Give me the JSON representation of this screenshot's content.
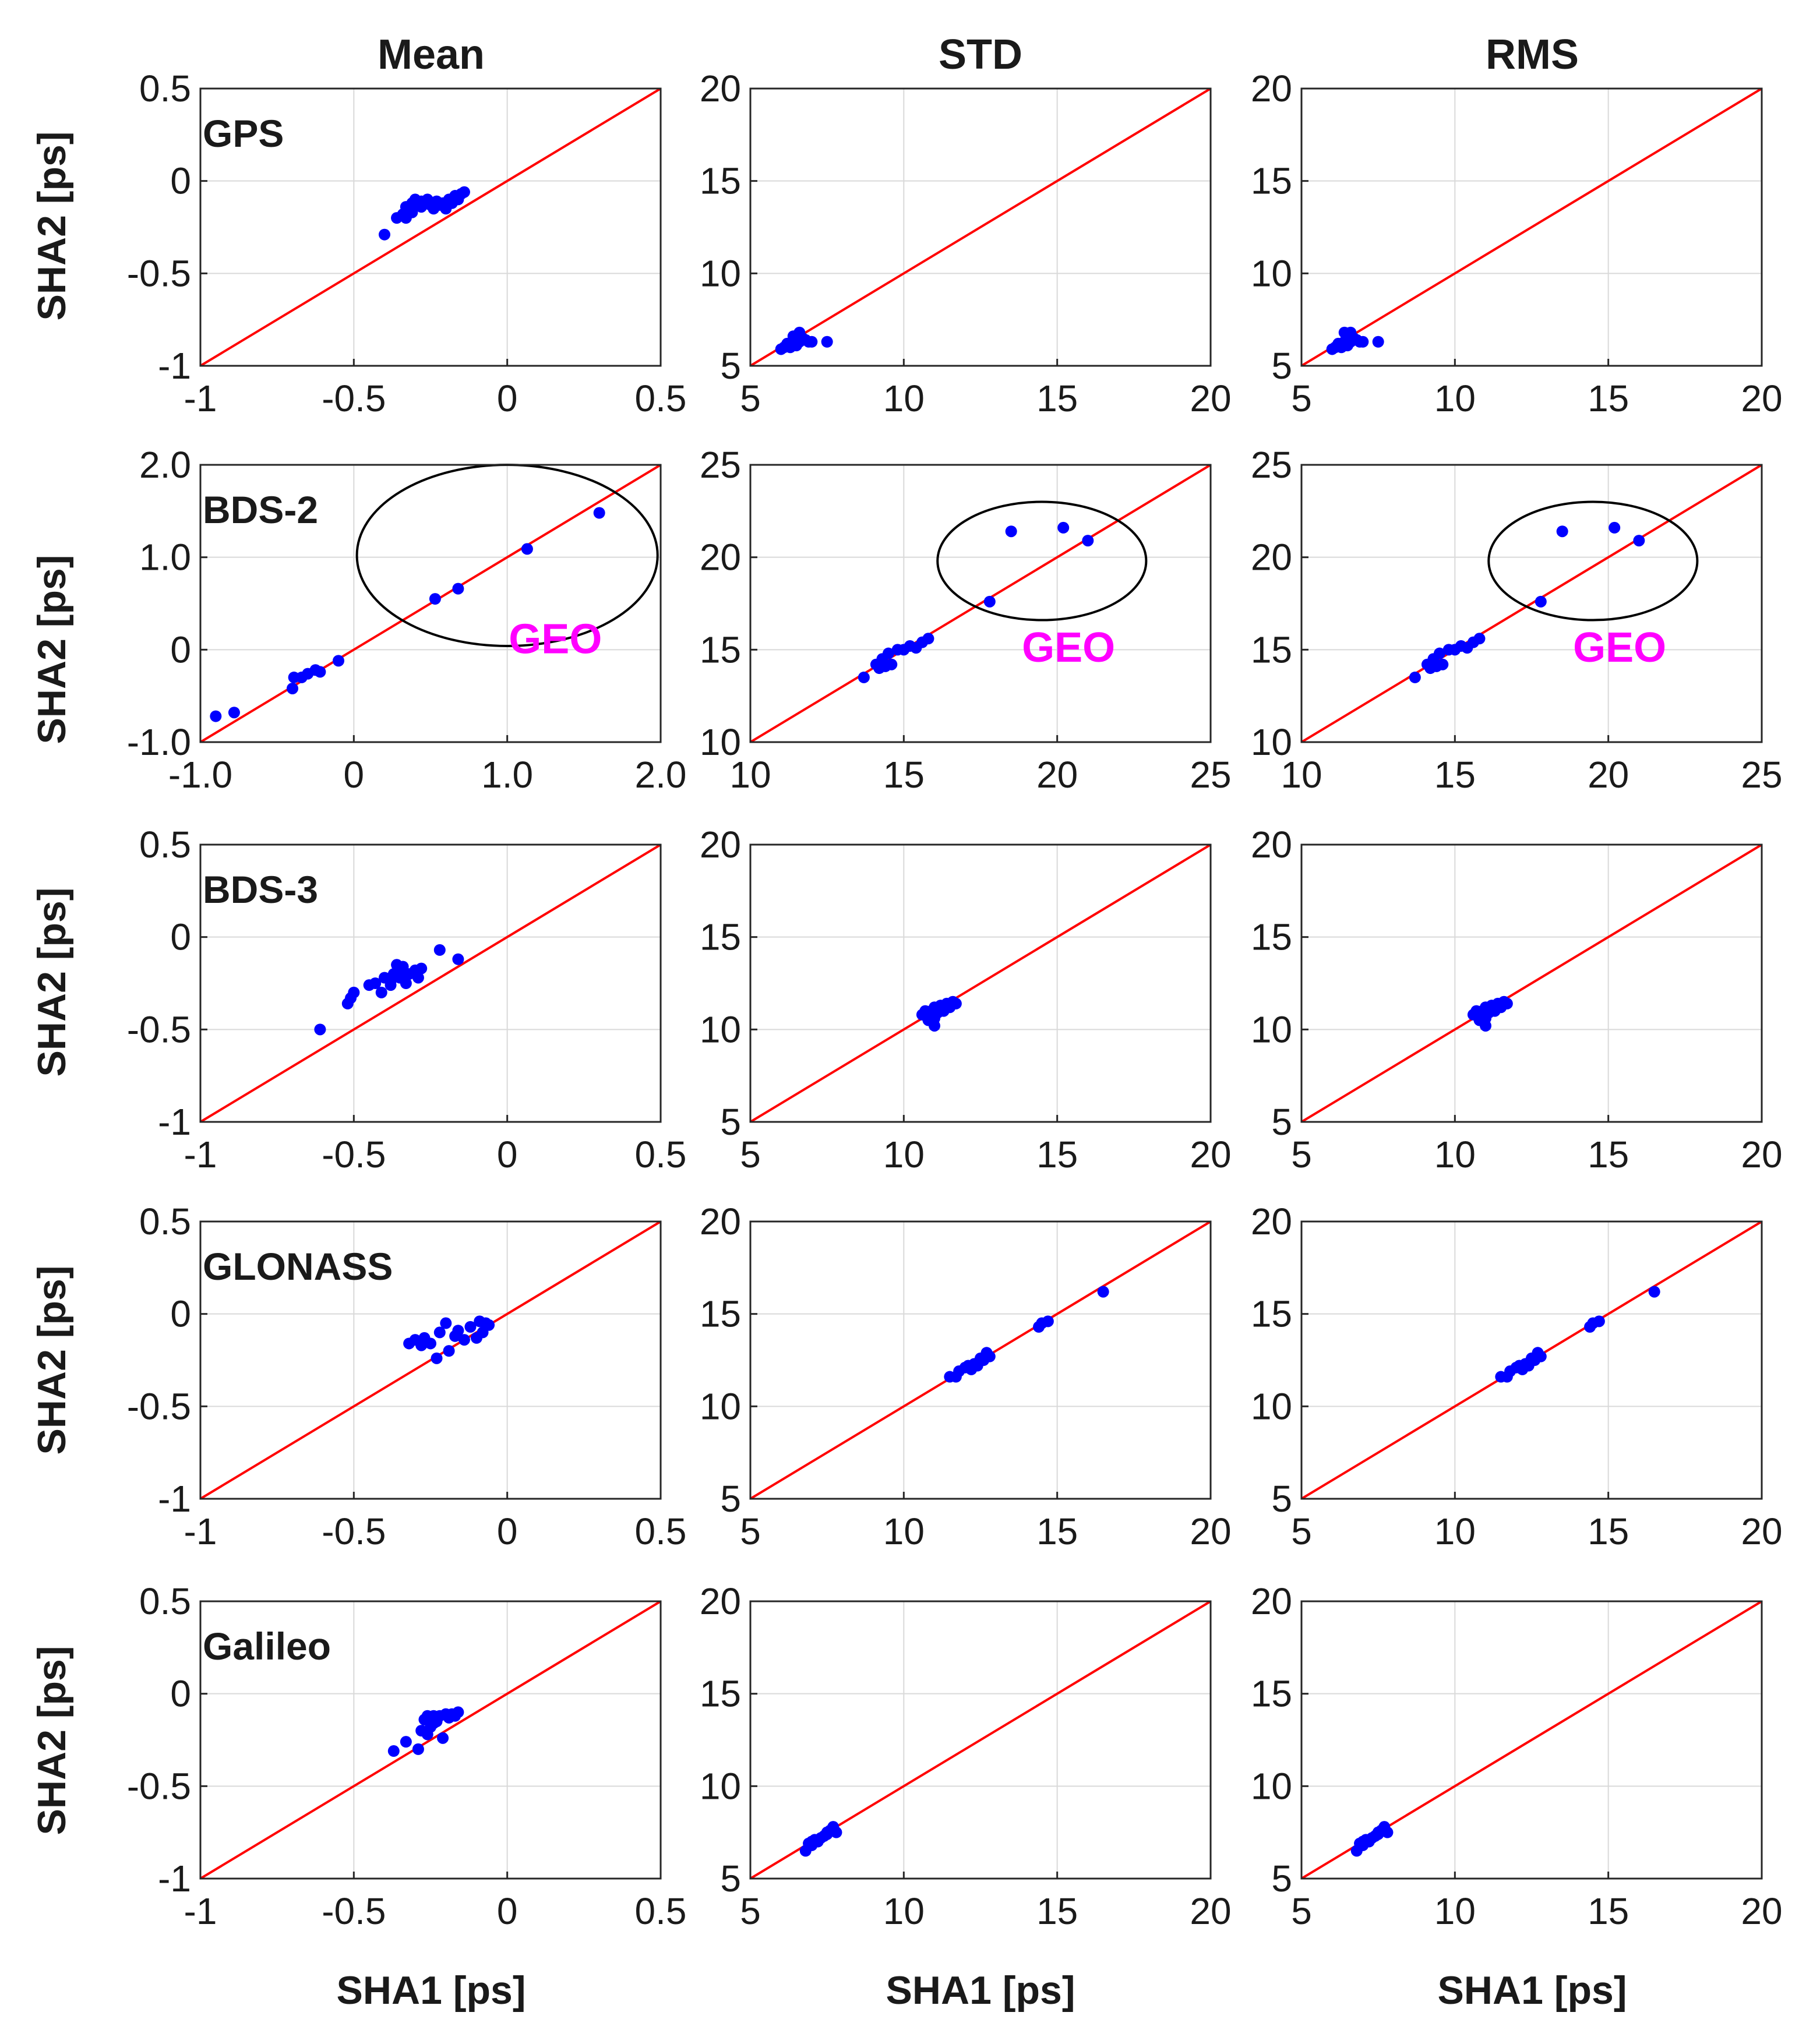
{
  "column_titles": [
    "Mean",
    "STD",
    "RMS"
  ],
  "ylabel": "SHA2 [ps]",
  "xlabel": "SHA1 [ps]",
  "row_labels": [
    "GPS",
    "BDS-2",
    "BDS-3",
    "GLONASS",
    "Galileo"
  ],
  "geo_label": "GEO",
  "colors": {
    "points": "#0000ff",
    "reference_line": "#ff0000",
    "grid": "#d9d9d9",
    "axes": "#262626",
    "geo_text": "#ff00ff",
    "ellipse": "#000000"
  },
  "chart_data": [
    {
      "type": "scatter",
      "system": "GPS",
      "stat": "Mean",
      "xlim": [
        -1,
        0.5
      ],
      "ylim": [
        -1,
        0.5
      ],
      "xticks": [
        "-1",
        "-0.5",
        "0",
        "0.5"
      ],
      "yticks": [
        "-1",
        "-0.5",
        "0",
        "0.5"
      ],
      "x": [
        -0.4,
        -0.36,
        -0.34,
        -0.33,
        -0.32,
        -0.31,
        -0.3,
        -0.29,
        -0.28,
        -0.27,
        -0.26,
        -0.25,
        -0.24,
        -0.23,
        -0.22,
        -0.21,
        -0.2,
        -0.19,
        -0.18,
        -0.17,
        -0.16,
        -0.15,
        -0.14,
        -0.31,
        -0.28,
        -0.33
      ],
      "y": [
        -0.29,
        -0.2,
        -0.18,
        -0.14,
        -0.16,
        -0.12,
        -0.1,
        -0.13,
        -0.14,
        -0.12,
        -0.1,
        -0.13,
        -0.15,
        -0.11,
        -0.13,
        -0.12,
        -0.15,
        -0.1,
        -0.12,
        -0.08,
        -0.1,
        -0.07,
        -0.06,
        -0.17,
        -0.11,
        -0.2
      ]
    },
    {
      "type": "scatter",
      "system": "GPS",
      "stat": "STD",
      "xlim": [
        5,
        20
      ],
      "ylim": [
        5,
        20
      ],
      "xticks": [
        "5",
        "10",
        "15",
        "20"
      ],
      "yticks": [
        "5",
        "10",
        "15",
        "20"
      ],
      "x": [
        6.0,
        6.1,
        6.2,
        6.3,
        6.3,
        6.4,
        6.5,
        6.5,
        6.6,
        6.6,
        6.7,
        6.8,
        6.9,
        7.0,
        7.5,
        6.2,
        6.4
      ],
      "y": [
        5.9,
        6.0,
        6.1,
        6.2,
        6.0,
        6.3,
        6.4,
        6.1,
        6.3,
        6.8,
        6.5,
        6.4,
        6.3,
        6.3,
        6.3,
        6.2,
        6.6
      ]
    },
    {
      "type": "scatter",
      "system": "GPS",
      "stat": "RMS",
      "xlim": [
        5,
        20
      ],
      "ylim": [
        5,
        20
      ],
      "xticks": [
        "5",
        "10",
        "15",
        "20"
      ],
      "yticks": [
        "5",
        "10",
        "15",
        "20"
      ],
      "x": [
        6.0,
        6.1,
        6.2,
        6.3,
        6.3,
        6.4,
        6.5,
        6.5,
        6.6,
        6.6,
        6.7,
        6.8,
        6.9,
        7.0,
        7.5,
        6.2,
        6.4
      ],
      "y": [
        5.9,
        6.0,
        6.1,
        6.2,
        6.0,
        6.3,
        6.4,
        6.1,
        6.3,
        6.8,
        6.5,
        6.4,
        6.3,
        6.3,
        6.3,
        6.2,
        6.8
      ]
    },
    {
      "type": "scatter",
      "system": "BDS-2",
      "stat": "Mean",
      "xlim": [
        -1.0,
        2.0
      ],
      "ylim": [
        -1.0,
        2.0
      ],
      "xticks": [
        "-1.0",
        "0",
        "1.0",
        "2.0"
      ],
      "yticks": [
        "-1.0",
        "0",
        "1.0",
        "2.0"
      ],
      "x": [
        -0.9,
        -0.78,
        -0.4,
        -0.39,
        -0.34,
        -0.3,
        -0.25,
        -0.22,
        -0.1,
        0.53,
        0.68,
        1.13,
        1.6
      ],
      "y": [
        -0.72,
        -0.68,
        -0.42,
        -0.3,
        -0.3,
        -0.26,
        -0.22,
        -0.24,
        -0.12,
        0.55,
        0.66,
        1.09,
        1.48
      ],
      "geo_ellipse": {
        "cx": 1.0,
        "cy": 1.02,
        "rx": 0.98,
        "ry": 0.98
      }
    },
    {
      "type": "scatter",
      "system": "BDS-2",
      "stat": "STD",
      "xlim": [
        10,
        25
      ],
      "ylim": [
        10,
        25
      ],
      "xticks": [
        "10",
        "15",
        "20",
        "25"
      ],
      "yticks": [
        "10",
        "15",
        "20",
        "25"
      ],
      "x": [
        13.7,
        14.1,
        14.2,
        14.3,
        14.4,
        14.5,
        14.6,
        14.8,
        15.0,
        15.2,
        15.4,
        15.6,
        15.8,
        17.8,
        18.5,
        20.2,
        21.0
      ],
      "y": [
        13.5,
        14.2,
        14.0,
        14.5,
        14.1,
        14.8,
        14.2,
        15.0,
        15.0,
        15.2,
        15.1,
        15.4,
        15.6,
        17.6,
        21.4,
        21.6,
        20.9
      ],
      "geo_ellipse": {
        "cx": 19.5,
        "cy": 19.8,
        "rx": 3.4,
        "ry": 3.2
      }
    },
    {
      "type": "scatter",
      "system": "BDS-2",
      "stat": "RMS",
      "xlim": [
        10,
        25
      ],
      "ylim": [
        10,
        25
      ],
      "xticks": [
        "10",
        "15",
        "20",
        "25"
      ],
      "yticks": [
        "10",
        "15",
        "20",
        "25"
      ],
      "x": [
        13.7,
        14.1,
        14.2,
        14.3,
        14.4,
        14.5,
        14.6,
        14.8,
        15.0,
        15.2,
        15.4,
        15.6,
        15.8,
        17.8,
        18.5,
        20.2,
        21.0
      ],
      "y": [
        13.5,
        14.2,
        14.0,
        14.5,
        14.1,
        14.8,
        14.2,
        15.0,
        15.0,
        15.2,
        15.1,
        15.4,
        15.6,
        17.6,
        21.4,
        21.6,
        20.9
      ],
      "geo_ellipse": {
        "cx": 19.5,
        "cy": 19.8,
        "rx": 3.4,
        "ry": 3.2
      }
    },
    {
      "type": "scatter",
      "system": "BDS-3",
      "stat": "Mean",
      "xlim": [
        -1,
        0.5
      ],
      "ylim": [
        -1,
        0.5
      ],
      "xticks": [
        "-1",
        "-0.5",
        "0",
        "0.5"
      ],
      "yticks": [
        "-1",
        "-0.5",
        "0",
        "0.5"
      ],
      "x": [
        -0.61,
        -0.52,
        -0.51,
        -0.5,
        -0.45,
        -0.43,
        -0.41,
        -0.4,
        -0.38,
        -0.37,
        -0.36,
        -0.35,
        -0.34,
        -0.33,
        -0.32,
        -0.3,
        -0.29,
        -0.28,
        -0.22,
        -0.16,
        -0.38,
        -0.34
      ],
      "y": [
        -0.5,
        -0.36,
        -0.33,
        -0.3,
        -0.26,
        -0.25,
        -0.3,
        -0.22,
        -0.26,
        -0.2,
        -0.15,
        -0.22,
        -0.18,
        -0.25,
        -0.2,
        -0.18,
        -0.22,
        -0.17,
        -0.07,
        -0.12,
        -0.24,
        -0.16
      ]
    },
    {
      "type": "scatter",
      "system": "BDS-3",
      "stat": "STD",
      "xlim": [
        5,
        20
      ],
      "ylim": [
        5,
        20
      ],
      "xticks": [
        "5",
        "10",
        "15",
        "20"
      ],
      "yticks": [
        "5",
        "10",
        "15",
        "20"
      ],
      "x": [
        10.6,
        10.7,
        10.8,
        10.9,
        11.0,
        11.0,
        11.1,
        11.2,
        11.3,
        11.4,
        11.5,
        11.6,
        11.7,
        10.8,
        11.0,
        11.2
      ],
      "y": [
        10.8,
        11.0,
        10.7,
        11.0,
        10.2,
        11.2,
        10.9,
        11.3,
        11.0,
        11.4,
        11.2,
        11.5,
        11.4,
        10.5,
        10.6,
        11.1
      ]
    },
    {
      "type": "scatter",
      "system": "BDS-3",
      "stat": "RMS",
      "xlim": [
        5,
        20
      ],
      "ylim": [
        5,
        20
      ],
      "xticks": [
        "5",
        "10",
        "15",
        "20"
      ],
      "yticks": [
        "5",
        "10",
        "15",
        "20"
      ],
      "x": [
        10.6,
        10.7,
        10.8,
        10.9,
        11.0,
        11.0,
        11.1,
        11.2,
        11.3,
        11.4,
        11.5,
        11.6,
        11.7,
        10.8,
        11.0,
        11.2
      ],
      "y": [
        10.8,
        11.0,
        10.7,
        11.0,
        10.2,
        11.2,
        10.9,
        11.3,
        11.0,
        11.4,
        11.2,
        11.5,
        11.4,
        10.5,
        10.6,
        11.1
      ]
    },
    {
      "type": "scatter",
      "system": "GLONASS",
      "stat": "Mean",
      "xlim": [
        -1,
        0.5
      ],
      "ylim": [
        -1,
        0.5
      ],
      "xticks": [
        "-1",
        "-0.5",
        "0",
        "0.5"
      ],
      "yticks": [
        "-1",
        "-0.5",
        "0",
        "0.5"
      ],
      "x": [
        -0.32,
        -0.3,
        -0.28,
        -0.27,
        -0.25,
        -0.23,
        -0.22,
        -0.2,
        -0.19,
        -0.17,
        -0.16,
        -0.14,
        -0.12,
        -0.1,
        -0.09,
        -0.08,
        -0.07,
        -0.06
      ],
      "y": [
        -0.16,
        -0.14,
        -0.17,
        -0.13,
        -0.16,
        -0.24,
        -0.1,
        -0.05,
        -0.2,
        -0.12,
        -0.09,
        -0.14,
        -0.07,
        -0.13,
        -0.04,
        -0.1,
        -0.05,
        -0.06
      ]
    },
    {
      "type": "scatter",
      "system": "GLONASS",
      "stat": "STD",
      "xlim": [
        5,
        20
      ],
      "ylim": [
        5,
        20
      ],
      "xticks": [
        "5",
        "10",
        "15",
        "20"
      ],
      "yticks": [
        "5",
        "10",
        "15",
        "20"
      ],
      "x": [
        11.5,
        11.7,
        11.8,
        12.0,
        12.1,
        12.2,
        12.3,
        12.4,
        12.5,
        12.6,
        12.7,
        12.8,
        14.4,
        14.5,
        14.7,
        16.5
      ],
      "y": [
        11.6,
        11.6,
        11.9,
        12.1,
        12.2,
        12.0,
        12.3,
        12.2,
        12.6,
        12.5,
        12.9,
        12.7,
        14.3,
        14.5,
        14.6,
        16.2
      ]
    },
    {
      "type": "scatter",
      "system": "GLONASS",
      "stat": "RMS",
      "xlim": [
        5,
        20
      ],
      "ylim": [
        5,
        20
      ],
      "xticks": [
        "5",
        "10",
        "15",
        "20"
      ],
      "yticks": [
        "5",
        "10",
        "15",
        "20"
      ],
      "x": [
        11.5,
        11.7,
        11.8,
        12.0,
        12.1,
        12.2,
        12.3,
        12.4,
        12.5,
        12.6,
        12.7,
        12.8,
        14.4,
        14.5,
        14.7,
        16.5
      ],
      "y": [
        11.6,
        11.6,
        11.9,
        12.1,
        12.2,
        12.0,
        12.3,
        12.2,
        12.6,
        12.5,
        12.9,
        12.7,
        14.3,
        14.5,
        14.6,
        16.2
      ]
    },
    {
      "type": "scatter",
      "system": "Galileo",
      "stat": "Mean",
      "xlim": [
        -1,
        0.5
      ],
      "ylim": [
        -1,
        0.5
      ],
      "xticks": [
        "-1",
        "-0.5",
        "0",
        "0.5"
      ],
      "yticks": [
        "-1",
        "-0.5",
        "0",
        "0.5"
      ],
      "x": [
        -0.37,
        -0.33,
        -0.29,
        -0.28,
        -0.27,
        -0.26,
        -0.25,
        -0.24,
        -0.23,
        -0.22,
        -0.21,
        -0.2,
        -0.19,
        -0.18,
        -0.17,
        -0.16,
        -0.26,
        -0.24
      ],
      "y": [
        -0.31,
        -0.26,
        -0.3,
        -0.2,
        -0.14,
        -0.12,
        -0.18,
        -0.12,
        -0.15,
        -0.12,
        -0.24,
        -0.11,
        -0.13,
        -0.11,
        -0.12,
        -0.1,
        -0.22,
        -0.16
      ]
    },
    {
      "type": "scatter",
      "system": "Galileo",
      "stat": "STD",
      "xlim": [
        5,
        20
      ],
      "ylim": [
        5,
        20
      ],
      "xticks": [
        "5",
        "10",
        "15",
        "20"
      ],
      "yticks": [
        "5",
        "10",
        "15",
        "20"
      ],
      "x": [
        6.8,
        6.9,
        7.0,
        7.1,
        7.2,
        7.3,
        7.4,
        7.5,
        7.6,
        7.7,
        7.8,
        7.0,
        7.5
      ],
      "y": [
        6.5,
        6.9,
        7.0,
        7.1,
        7.0,
        7.2,
        7.3,
        7.5,
        7.6,
        7.8,
        7.5,
        6.8,
        7.4
      ]
    },
    {
      "type": "scatter",
      "system": "Galileo",
      "stat": "RMS",
      "xlim": [
        5,
        20
      ],
      "ylim": [
        5,
        20
      ],
      "xticks": [
        "5",
        "10",
        "15",
        "20"
      ],
      "yticks": [
        "5",
        "10",
        "15",
        "20"
      ],
      "x": [
        6.8,
        6.9,
        7.0,
        7.1,
        7.2,
        7.3,
        7.4,
        7.5,
        7.6,
        7.7,
        7.8,
        7.0,
        7.5
      ],
      "y": [
        6.5,
        6.9,
        7.0,
        7.1,
        7.0,
        7.2,
        7.3,
        7.5,
        7.6,
        7.8,
        7.5,
        6.8,
        7.4
      ]
    }
  ]
}
